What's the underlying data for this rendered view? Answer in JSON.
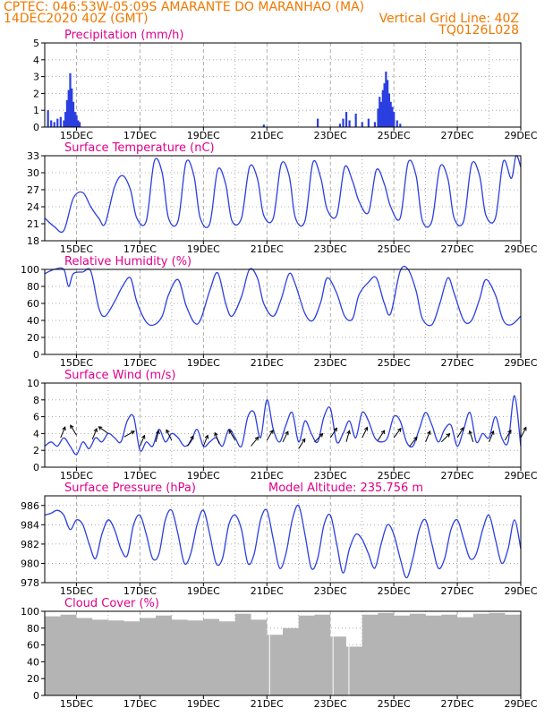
{
  "header": {
    "line1_left": "CPTEC:   046:53W-05:09S   AMARANTE DO MARANHAO (MA)",
    "line2_left": "14DEC2020 40Z (GMT)",
    "line2_right": "Vertical Grid Line: 40Z",
    "line3_right": "TQ0126L028"
  },
  "colors": {
    "header": "#f07800",
    "panel_title": "#e0008c",
    "series": "#2b3fe0",
    "cloud": "#b4b4b4",
    "grid": "#9a9a9a",
    "arrows": "#000000"
  },
  "x_tick_labels": [
    "15DEC",
    "17DEC",
    "19DEC",
    "21DEC",
    "23DEC",
    "25DEC",
    "27DEC",
    "29DEC"
  ],
  "chart_data": [
    {
      "type": "bar",
      "title": "Precipitation (mm/h)",
      "ylim": [
        0,
        5
      ],
      "yticks": [
        0,
        1,
        2,
        3,
        4,
        5
      ],
      "xlim": [
        14.0,
        29.0
      ],
      "series": [
        {
          "x": [
            14.1,
            14.2,
            14.3,
            14.4,
            14.5,
            14.6,
            14.65,
            14.7,
            14.75,
            14.8,
            14.85,
            14.9,
            14.95,
            15.0,
            15.05,
            15.1,
            20.9,
            22.6,
            23.3,
            23.4,
            23.5,
            23.6,
            23.8,
            24.0,
            24.2,
            24.4,
            24.5,
            24.55,
            24.6,
            24.65,
            24.7,
            24.75,
            24.8,
            24.85,
            24.9,
            24.95,
            25.0,
            25.1,
            25.2
          ],
          "values": [
            1.0,
            0.4,
            0.3,
            0.5,
            0.6,
            0.4,
            0.9,
            1.6,
            2.2,
            3.2,
            2.3,
            1.5,
            0.9,
            0.7,
            0.4,
            0.3,
            0.15,
            0.5,
            0.2,
            0.5,
            0.9,
            0.4,
            0.8,
            0.3,
            0.5,
            0.3,
            1.1,
            1.8,
            1.5,
            2.2,
            2.6,
            3.3,
            2.8,
            2.0,
            1.5,
            1.2,
            0.9,
            0.4,
            0.2
          ]
        }
      ]
    },
    {
      "type": "line",
      "title": "Surface Temperature (nC)",
      "ylim": [
        18,
        33
      ],
      "yticks": [
        18,
        21,
        24,
        27,
        30,
        33
      ],
      "xlim": [
        14.0,
        29.0
      ],
      "series": [
        {
          "x": [
            14.0,
            14.3,
            14.6,
            14.9,
            15.2,
            15.45,
            15.7,
            15.9,
            16.2,
            16.45,
            16.7,
            16.9,
            17.2,
            17.45,
            17.7,
            17.9,
            18.2,
            18.45,
            18.7,
            18.9,
            19.2,
            19.45,
            19.7,
            19.9,
            20.2,
            20.45,
            20.7,
            20.9,
            21.2,
            21.45,
            21.7,
            21.9,
            22.2,
            22.45,
            22.7,
            22.9,
            23.2,
            23.45,
            23.7,
            23.9,
            24.2,
            24.45,
            24.7,
            24.9,
            25.2,
            25.45,
            25.7,
            25.9,
            26.2,
            26.45,
            26.7,
            26.9,
            27.2,
            27.45,
            27.7,
            27.9,
            28.2,
            28.45,
            28.7,
            28.85,
            29.0
          ],
          "values": [
            22.0,
            20.5,
            19.8,
            25.5,
            26.5,
            24.0,
            22.0,
            21.0,
            27.5,
            29.5,
            27.0,
            22.0,
            21.5,
            32.0,
            30.0,
            22.0,
            21.5,
            31.8,
            29.5,
            22.0,
            21.0,
            30.5,
            28.0,
            21.5,
            22.0,
            31.0,
            29.0,
            22.5,
            22.0,
            31.5,
            29.5,
            22.0,
            21.5,
            31.8,
            29.0,
            23.5,
            22.5,
            31.0,
            28.5,
            25.0,
            23.0,
            30.5,
            28.0,
            24.0,
            22.0,
            31.8,
            29.5,
            21.5,
            21.5,
            31.0,
            29.0,
            22.0,
            21.5,
            31.5,
            29.5,
            22.5,
            22.0,
            32.0,
            29.0,
            33.0,
            31.0
          ]
        }
      ]
    },
    {
      "type": "line",
      "title": "Relative Humidity (%)",
      "ylim": [
        0,
        100
      ],
      "yticks": [
        0,
        20,
        40,
        60,
        80,
        100
      ],
      "xlim": [
        14.0,
        29.0
      ],
      "series": [
        {
          "x": [
            14.0,
            14.3,
            14.6,
            14.75,
            14.9,
            15.2,
            15.45,
            15.7,
            15.9,
            16.2,
            16.45,
            16.7,
            16.9,
            17.2,
            17.45,
            17.7,
            17.9,
            18.2,
            18.45,
            18.7,
            18.9,
            19.2,
            19.45,
            19.7,
            19.9,
            20.2,
            20.45,
            20.7,
            20.9,
            21.2,
            21.45,
            21.7,
            21.9,
            22.2,
            22.45,
            22.7,
            22.9,
            23.2,
            23.45,
            23.7,
            23.9,
            24.2,
            24.45,
            24.7,
            24.9,
            25.2,
            25.45,
            25.7,
            25.9,
            26.2,
            26.45,
            26.7,
            26.9,
            27.2,
            27.45,
            27.7,
            27.9,
            28.2,
            28.45,
            28.7,
            29.0
          ],
          "values": [
            95,
            100,
            100,
            80,
            95,
            97,
            98,
            55,
            45,
            62,
            80,
            90,
            62,
            38,
            35,
            45,
            70,
            88,
            58,
            38,
            40,
            75,
            96,
            60,
            45,
            68,
            100,
            90,
            60,
            45,
            65,
            95,
            82,
            48,
            40,
            62,
            90,
            72,
            45,
            42,
            70,
            85,
            90,
            60,
            48,
            98,
            100,
            75,
            42,
            35,
            60,
            90,
            72,
            40,
            40,
            65,
            88,
            70,
            40,
            35,
            45
          ]
        }
      ]
    },
    {
      "type": "line",
      "title": "Surface Wind (m/s)",
      "ylim": [
        0,
        10
      ],
      "yticks": [
        0,
        2,
        4,
        6,
        8,
        10
      ],
      "xlim": [
        14.0,
        29.0
      ],
      "series": [
        {
          "x": [
            14.0,
            14.2,
            14.4,
            14.6,
            14.8,
            15.0,
            15.2,
            15.4,
            15.6,
            15.8,
            16.0,
            16.2,
            16.4,
            16.6,
            16.8,
            17.0,
            17.2,
            17.4,
            17.6,
            17.8,
            18.0,
            18.2,
            18.4,
            18.6,
            18.8,
            19.0,
            19.2,
            19.4,
            19.6,
            19.8,
            20.0,
            20.2,
            20.4,
            20.6,
            20.8,
            21.0,
            21.2,
            21.4,
            21.6,
            21.8,
            22.0,
            22.2,
            22.4,
            22.6,
            22.8,
            23.0,
            23.2,
            23.4,
            23.6,
            23.8,
            24.0,
            24.2,
            24.4,
            24.6,
            24.8,
            25.0,
            25.2,
            25.4,
            25.6,
            25.8,
            26.0,
            26.2,
            26.4,
            26.6,
            26.8,
            27.0,
            27.2,
            27.4,
            27.6,
            27.8,
            28.0,
            28.2,
            28.4,
            28.6,
            28.8,
            29.0
          ],
          "values": [
            2.5,
            3.0,
            2.5,
            3.5,
            2.5,
            1.5,
            3.0,
            2.2,
            3.5,
            3.0,
            4.0,
            3.5,
            3.0,
            5.5,
            6.0,
            2.0,
            3.0,
            2.5,
            4.5,
            3.0,
            4.0,
            3.5,
            2.5,
            3.0,
            4.5,
            2.5,
            3.0,
            3.5,
            2.5,
            4.5,
            3.5,
            2.5,
            6.0,
            6.5,
            3.5,
            8.0,
            4.5,
            3.0,
            5.0,
            6.5,
            3.0,
            5.5,
            4.0,
            3.0,
            6.0,
            7.0,
            3.0,
            4.0,
            5.5,
            3.5,
            6.5,
            5.5,
            3.5,
            3.0,
            3.5,
            6.0,
            5.5,
            3.0,
            2.5,
            4.5,
            6.5,
            5.0,
            3.0,
            4.5,
            5.0,
            2.5,
            4.5,
            6.5,
            3.0,
            4.0,
            3.5,
            6.0,
            3.5,
            3.0,
            8.5,
            2.5
          ]
        }
      ],
      "wind_arrows": [
        {
          "x": 14.5,
          "y": 3.5,
          "u": 0.5,
          "v": 1.2
        },
        {
          "x": 15.0,
          "y": 3.8,
          "u": -0.6,
          "v": 1.0
        },
        {
          "x": 15.5,
          "y": 3.3,
          "u": 0.4,
          "v": 1.0
        },
        {
          "x": 16.0,
          "y": 4.0,
          "u": -0.7,
          "v": 0.5
        },
        {
          "x": 16.5,
          "y": 3.6,
          "u": 0.9,
          "v": 0.5
        },
        {
          "x": 17.0,
          "y": 2.5,
          "u": 0.6,
          "v": 1.4
        },
        {
          "x": 17.5,
          "y": 3.0,
          "u": 0.3,
          "v": 1.2
        },
        {
          "x": 18.0,
          "y": 3.2,
          "u": -0.5,
          "v": 1.0
        },
        {
          "x": 18.5,
          "y": 2.5,
          "u": 0.5,
          "v": 0.9
        },
        {
          "x": 19.0,
          "y": 2.5,
          "u": 0.4,
          "v": 1.0
        },
        {
          "x": 19.5,
          "y": 2.8,
          "u": -0.4,
          "v": 1.0
        },
        {
          "x": 20.0,
          "y": 3.2,
          "u": -0.6,
          "v": 1.0
        },
        {
          "x": 20.5,
          "y": 2.5,
          "u": 0.8,
          "v": 1.0
        },
        {
          "x": 21.0,
          "y": 3.2,
          "u": 0.6,
          "v": 1.0
        },
        {
          "x": 21.5,
          "y": 3.0,
          "u": 0.5,
          "v": 1.0
        },
        {
          "x": 22.0,
          "y": 2.2,
          "u": 0.9,
          "v": 1.4
        },
        {
          "x": 22.5,
          "y": 3.0,
          "u": 0.8,
          "v": 0.8
        },
        {
          "x": 23.0,
          "y": 3.5,
          "u": 0.8,
          "v": 1.2
        },
        {
          "x": 23.5,
          "y": 3.0,
          "u": 0.4,
          "v": 1.4
        },
        {
          "x": 24.0,
          "y": 3.5,
          "u": 0.6,
          "v": 1.2
        },
        {
          "x": 24.5,
          "y": 3.2,
          "u": 0.8,
          "v": 1.2
        },
        {
          "x": 25.0,
          "y": 3.5,
          "u": 0.9,
          "v": 1.2
        },
        {
          "x": 25.5,
          "y": 2.5,
          "u": 0.8,
          "v": 1.0
        },
        {
          "x": 26.0,
          "y": 3.0,
          "u": 0.5,
          "v": 1.2
        },
        {
          "x": 26.5,
          "y": 3.0,
          "u": 0.8,
          "v": 0.8
        },
        {
          "x": 27.0,
          "y": 3.5,
          "u": 0.6,
          "v": 1.0
        },
        {
          "x": 27.5,
          "y": 3.0,
          "u": -0.4,
          "v": 1.2
        },
        {
          "x": 28.0,
          "y": 3.0,
          "u": 0.5,
          "v": 1.2
        },
        {
          "x": 28.5,
          "y": 3.2,
          "u": 0.6,
          "v": 1.0
        },
        {
          "x": 29.0,
          "y": 3.5,
          "u": 0.5,
          "v": 1.0
        }
      ]
    },
    {
      "type": "line",
      "title": "Surface Pressure (hPa)",
      "annotation": "Model Altitude: 235.756 m",
      "ylim": [
        978,
        987
      ],
      "yticks": [
        978,
        980,
        982,
        984,
        986
      ],
      "xlim": [
        14.0,
        29.0
      ],
      "series": [
        {
          "x": [
            14.0,
            14.2,
            14.4,
            14.6,
            14.8,
            15.0,
            15.2,
            15.4,
            15.6,
            15.8,
            16.0,
            16.2,
            16.4,
            16.6,
            16.8,
            17.0,
            17.2,
            17.4,
            17.6,
            17.8,
            18.0,
            18.2,
            18.4,
            18.6,
            18.8,
            19.0,
            19.2,
            19.4,
            19.6,
            19.8,
            20.0,
            20.2,
            20.4,
            20.6,
            20.8,
            21.0,
            21.2,
            21.4,
            21.6,
            21.8,
            22.0,
            22.2,
            22.4,
            22.6,
            22.8,
            23.0,
            23.2,
            23.4,
            23.6,
            23.8,
            24.0,
            24.2,
            24.4,
            24.6,
            24.8,
            25.0,
            25.2,
            25.4,
            25.6,
            25.8,
            26.0,
            26.2,
            26.4,
            26.6,
            26.8,
            27.0,
            27.2,
            27.4,
            27.6,
            27.8,
            28.0,
            28.2,
            28.4,
            28.6,
            28.8,
            29.0
          ],
          "values": [
            985,
            985.2,
            985.5,
            985.0,
            983.5,
            984.5,
            984.0,
            982.0,
            980.5,
            983.0,
            984.5,
            983.5,
            981.5,
            980.8,
            984.0,
            985.0,
            983.0,
            980.5,
            981.0,
            984.5,
            985.5,
            983.0,
            980.0,
            981.0,
            984.0,
            985.5,
            983.0,
            980.0,
            980.5,
            984.0,
            985.0,
            983.5,
            980.0,
            981.0,
            984.5,
            985.5,
            982.5,
            979.5,
            981.0,
            984.5,
            986.0,
            983.0,
            979.5,
            980.5,
            984.0,
            985.0,
            982.0,
            979.0,
            981.5,
            983.0,
            982.5,
            981.0,
            979.5,
            982.0,
            984.0,
            983.0,
            980.5,
            978.5,
            980.5,
            983.5,
            984.5,
            982.0,
            979.5,
            980.5,
            983.5,
            984.5,
            982.5,
            980.5,
            981.0,
            983.5,
            985.0,
            982.5,
            980.0,
            981.5,
            984.5,
            981.5
          ]
        }
      ]
    },
    {
      "type": "bar",
      "title": "Cloud Cover (%)",
      "ylim": [
        0,
        100
      ],
      "yticks": [
        0,
        20,
        40,
        60,
        80,
        100
      ],
      "xlim": [
        14.0,
        29.0
      ],
      "series": [
        {
          "x": [
            14.0,
            14.5,
            15.0,
            15.5,
            16.0,
            16.5,
            17.0,
            17.5,
            18.0,
            18.5,
            19.0,
            19.5,
            20.0,
            20.5,
            21.0,
            21.5,
            22.0,
            22.5,
            23.0,
            23.5,
            24.0,
            24.5,
            25.0,
            25.5,
            26.0,
            26.5,
            27.0,
            27.5,
            28.0,
            28.5
          ],
          "values": [
            94,
            96,
            92,
            90,
            89,
            88,
            92,
            95,
            90,
            89,
            91,
            88,
            97,
            90,
            72,
            80,
            95,
            96,
            70,
            58,
            96,
            98,
            95,
            97,
            95,
            96,
            93,
            97,
            98,
            96
          ]
        }
      ]
    }
  ]
}
